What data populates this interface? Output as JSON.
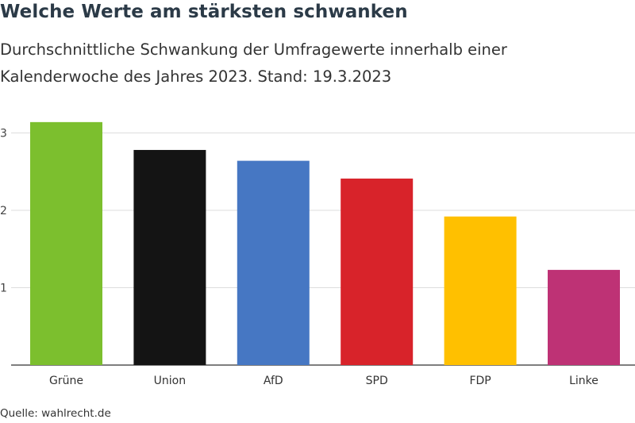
{
  "header": {
    "title": "Welche Werte am stärksten schwanken",
    "subtitle": "Durchschnittliche Schwankung der Umfragewerte innerhalb einer Kalenderwoche des Jahres 2023. Stand: 19.3.2023"
  },
  "footer": {
    "source": "Quelle: wahlrecht.de"
  },
  "chart_data": {
    "type": "bar",
    "categories": [
      "Grüne",
      "Union",
      "AfD",
      "SPD",
      "FDP",
      "Linke"
    ],
    "values": [
      3.14,
      2.78,
      2.64,
      2.41,
      1.92,
      1.23
    ],
    "colors": [
      "#7cbf2e",
      "#141414",
      "#4677c3",
      "#d8232a",
      "#ffc000",
      "#be3275"
    ],
    "yticks": [
      1,
      2,
      3
    ],
    "ylim": [
      0,
      3.3
    ],
    "grid": true,
    "legend": "none"
  }
}
